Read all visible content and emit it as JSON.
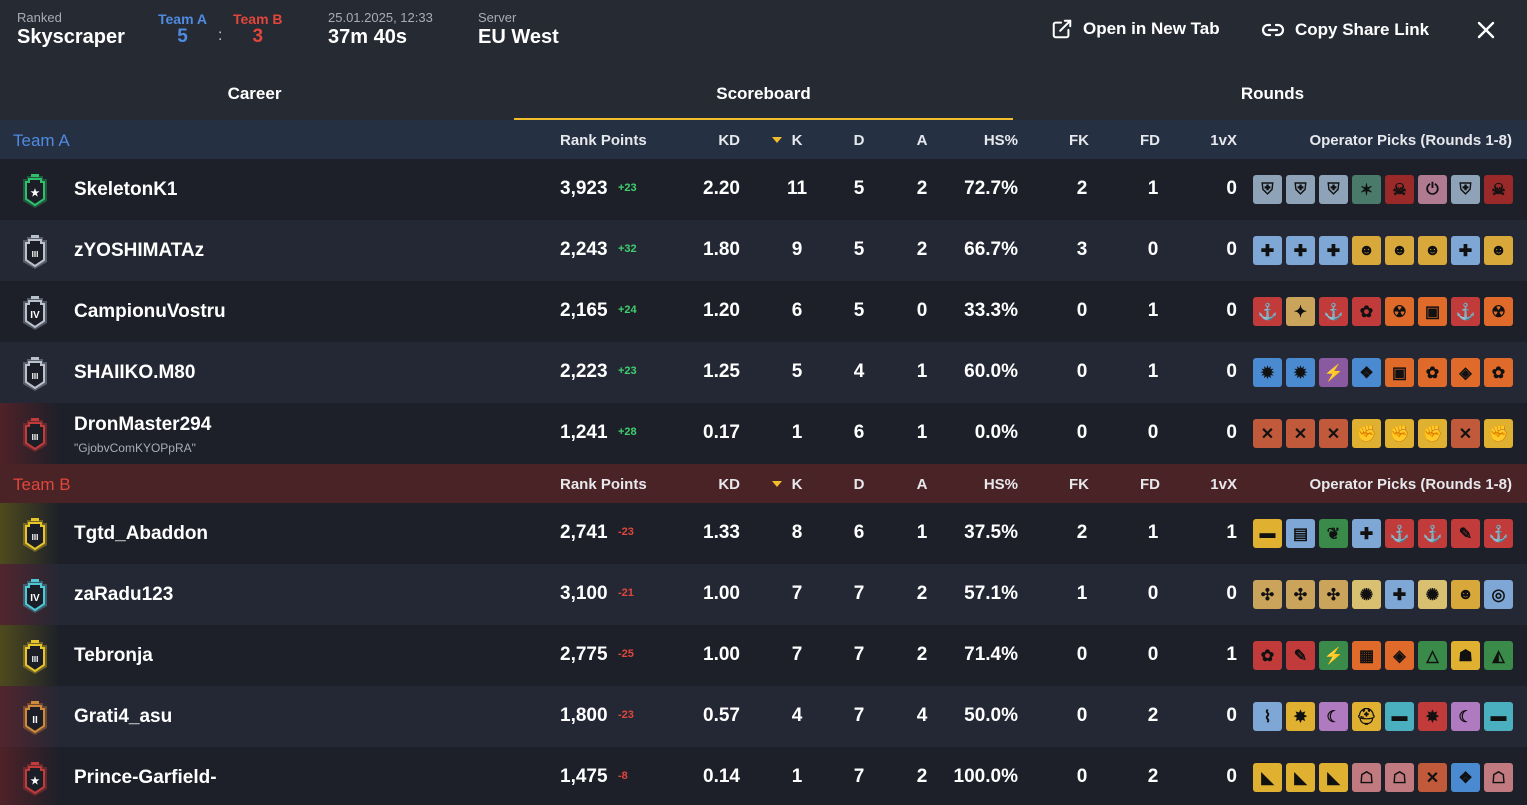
{
  "header": {
    "mode_label": "Ranked",
    "map": "Skyscraper",
    "team_a_label": "Team A",
    "team_a_score": "5",
    "team_b_label": "Team B",
    "team_b_score": "3",
    "score_sep": ":",
    "datetime": "25.01.2025, 12:33",
    "duration": "37m 40s",
    "server_label": "Server",
    "server": "EU West",
    "open_new_tab": "Open in New Tab",
    "copy_share_link": "Copy Share Link"
  },
  "tabs": [
    {
      "label": "Career",
      "active": false
    },
    {
      "label": "Scoreboard",
      "active": true
    },
    {
      "label": "Rounds",
      "active": false
    }
  ],
  "columns": {
    "rank_points": "Rank Points",
    "kd": "KD",
    "k": "K",
    "d": "D",
    "a": "A",
    "hs": "HS%",
    "fk": "FK",
    "fd": "FD",
    "onevx": "1vX",
    "operators": "Operator Picks (Rounds 1-8)"
  },
  "teams": [
    {
      "name": "Team A",
      "players": [
        {
          "name": "SkeletonK1",
          "alias": "",
          "rank_icon": "emerald-rank-icon",
          "rank_color": "#2fbf6a",
          "rank_numeral": "★",
          "rp": "3,923",
          "delta": "+23",
          "kd": "2.20",
          "k": "11",
          "d": "5",
          "a": "2",
          "hs": "72.7%",
          "fk": "2",
          "fd": "1",
          "onevx": "0",
          "ops": [
            [
              "#8fa3b8",
              "⛨"
            ],
            [
              "#8fa3b8",
              "⛨"
            ],
            [
              "#8fa3b8",
              "⛨"
            ],
            [
              "#4a7a6a",
              "✶"
            ],
            [
              "#9a2a2a",
              "☠"
            ],
            [
              "#b07a90",
              "⏻"
            ],
            [
              "#8fa3b8",
              "⛨"
            ],
            [
              "#9a2a2a",
              "☠"
            ]
          ]
        },
        {
          "name": "zYOSHIMATAz",
          "alias": "",
          "rank_icon": "platinum-rank-icon",
          "rank_color": "#b9c1cc",
          "rank_numeral": "III",
          "rp": "2,243",
          "delta": "+32",
          "kd": "1.80",
          "k": "9",
          "d": "5",
          "a": "2",
          "hs": "66.7%",
          "fk": "3",
          "fd": "0",
          "onevx": "0",
          "ops": [
            [
              "#7fa7d6",
              "✚"
            ],
            [
              "#7fa7d6",
              "✚"
            ],
            [
              "#7fa7d6",
              "✚"
            ],
            [
              "#d8a93a",
              "☻"
            ],
            [
              "#d8a93a",
              "☻"
            ],
            [
              "#d8a93a",
              "☻"
            ],
            [
              "#7fa7d6",
              "✚"
            ],
            [
              "#d8a93a",
              "☻"
            ]
          ]
        },
        {
          "name": "CampionuVostru",
          "alias": "",
          "rank_icon": "platinum-rank-icon",
          "rank_color": "#b9c1cc",
          "rank_numeral": "IV",
          "rp": "2,165",
          "delta": "+24",
          "kd": "1.20",
          "k": "6",
          "d": "5",
          "a": "0",
          "hs": "33.3%",
          "fk": "0",
          "fd": "1",
          "onevx": "0",
          "ops": [
            [
              "#c23b3b",
              "⚓"
            ],
            [
              "#c9a45a",
              "✦"
            ],
            [
              "#c23b3b",
              "⚓"
            ],
            [
              "#c23b3b",
              "✿"
            ],
            [
              "#e06a2a",
              "☢"
            ],
            [
              "#e06a2a",
              "▣"
            ],
            [
              "#c23b3b",
              "⚓"
            ],
            [
              "#e06a2a",
              "☢"
            ]
          ]
        },
        {
          "name": "SHAIIKO.M80",
          "alias": "",
          "rank_icon": "platinum-rank-icon",
          "rank_color": "#b9c1cc",
          "rank_numeral": "III",
          "rp": "2,223",
          "delta": "+23",
          "kd": "1.25",
          "k": "5",
          "d": "4",
          "a": "1",
          "hs": "60.0%",
          "fk": "0",
          "fd": "1",
          "onevx": "0",
          "ops": [
            [
              "#4a8ad0",
              "✹"
            ],
            [
              "#4a8ad0",
              "✹"
            ],
            [
              "#8a5aa0",
              "⚡"
            ],
            [
              "#4a8ad0",
              "❖"
            ],
            [
              "#e06a2a",
              "▣"
            ],
            [
              "#e06a2a",
              "✿"
            ],
            [
              "#e06a2a",
              "◈"
            ],
            [
              "#e06a2a",
              "✿"
            ]
          ]
        },
        {
          "name": "DronMaster294",
          "alias": "\"GjobvComKYOPpRA\"",
          "rank_icon": "copper-rank-icon",
          "rank_color": "#c23b3b",
          "rank_numeral": "III",
          "rp": "1,241",
          "delta": "+28",
          "kd": "0.17",
          "k": "1",
          "d": "6",
          "a": "1",
          "hs": "0.0%",
          "fk": "0",
          "fd": "0",
          "onevx": "0",
          "ops": [
            [
              "#c05a3a",
              "✕"
            ],
            [
              "#c05a3a",
              "✕"
            ],
            [
              "#c05a3a",
              "✕"
            ],
            [
              "#e0b030",
              "✊"
            ],
            [
              "#e0b030",
              "✊"
            ],
            [
              "#e0b030",
              "✊"
            ],
            [
              "#c05a3a",
              "✕"
            ],
            [
              "#e0b030",
              "✊"
            ]
          ]
        }
      ]
    },
    {
      "name": "Team B",
      "players": [
        {
          "name": "Tgtd_Abaddon",
          "alias": "",
          "rank_icon": "gold-rank-icon",
          "rank_color": "#e6c42a",
          "rank_numeral": "III",
          "rp": "2,741",
          "delta": "-23",
          "kd": "1.33",
          "k": "8",
          "d": "6",
          "a": "1",
          "hs": "37.5%",
          "fk": "2",
          "fd": "1",
          "onevx": "1",
          "ops": [
            [
              "#e0b030",
              "▬"
            ],
            [
              "#7fa7d6",
              "▤"
            ],
            [
              "#3a8a4a",
              "❦"
            ],
            [
              "#7fa7d6",
              "✚"
            ],
            [
              "#c23b3b",
              "⚓"
            ],
            [
              "#c23b3b",
              "⚓"
            ],
            [
              "#c23b3b",
              "✎"
            ],
            [
              "#c23b3b",
              "⚓"
            ]
          ]
        },
        {
          "name": "zaRadu123",
          "alias": "",
          "rank_icon": "diamond-rank-icon",
          "rank_color": "#4ec7d6",
          "rank_numeral": "IV",
          "rp": "3,100",
          "delta": "-21",
          "kd": "1.00",
          "k": "7",
          "d": "7",
          "a": "2",
          "hs": "57.1%",
          "fk": "1",
          "fd": "0",
          "onevx": "0",
          "ops": [
            [
              "#c9a45a",
              "✣"
            ],
            [
              "#c9a45a",
              "✣"
            ],
            [
              "#c9a45a",
              "✣"
            ],
            [
              "#d8c070",
              "✺"
            ],
            [
              "#7fa7d6",
              "✚"
            ],
            [
              "#d8c070",
              "✺"
            ],
            [
              "#d8a93a",
              "☻"
            ],
            [
              "#7fa7d6",
              "◎"
            ]
          ]
        },
        {
          "name": "Tebronja",
          "alias": "",
          "rank_icon": "gold-rank-icon",
          "rank_color": "#e6c42a",
          "rank_numeral": "III",
          "rp": "2,775",
          "delta": "-25",
          "kd": "1.00",
          "k": "7",
          "d": "7",
          "a": "2",
          "hs": "71.4%",
          "fk": "0",
          "fd": "0",
          "onevx": "1",
          "ops": [
            [
              "#c23b3b",
              "✿"
            ],
            [
              "#c23b3b",
              "✎"
            ],
            [
              "#3a8a4a",
              "⚡"
            ],
            [
              "#e06a2a",
              "▦"
            ],
            [
              "#e06a2a",
              "◈"
            ],
            [
              "#3a8a4a",
              "△"
            ],
            [
              "#e0b030",
              "☗"
            ],
            [
              "#3a8a4a",
              "◭"
            ]
          ]
        },
        {
          "name": "Grati4_asu",
          "alias": "",
          "rank_icon": "bronze-rank-icon",
          "rank_color": "#d08a3a",
          "rank_numeral": "II",
          "rp": "1,800",
          "delta": "-23",
          "kd": "0.57",
          "k": "4",
          "d": "7",
          "a": "4",
          "hs": "50.0%",
          "fk": "0",
          "fd": "2",
          "onevx": "0",
          "ops": [
            [
              "#7fa7d6",
              "⌇"
            ],
            [
              "#e0b030",
              "✸"
            ],
            [
              "#b07ac0",
              "☾"
            ],
            [
              "#e0b030",
              "⛑"
            ],
            [
              "#4ab0c0",
              "▬"
            ],
            [
              "#c23b3b",
              "✸"
            ],
            [
              "#b07ac0",
              "☾"
            ],
            [
              "#4ab0c0",
              "▬"
            ]
          ]
        },
        {
          "name": "Prince-Garfield-",
          "alias": "",
          "rank_icon": "copper-rank-icon",
          "rank_color": "#c23b3b",
          "rank_numeral": "★",
          "rp": "1,475",
          "delta": "-8",
          "kd": "0.14",
          "k": "1",
          "d": "7",
          "a": "2",
          "hs": "100.0%",
          "fk": "0",
          "fd": "2",
          "onevx": "0",
          "ops": [
            [
              "#e0b030",
              "◣"
            ],
            [
              "#e0b030",
              "◣"
            ],
            [
              "#e0b030",
              "◣"
            ],
            [
              "#c07a80",
              "☖"
            ],
            [
              "#c07a80",
              "☖"
            ],
            [
              "#c05a3a",
              "✕"
            ],
            [
              "#4a8ad0",
              "❖"
            ],
            [
              "#c07a80",
              "☖"
            ]
          ]
        }
      ]
    }
  ]
}
